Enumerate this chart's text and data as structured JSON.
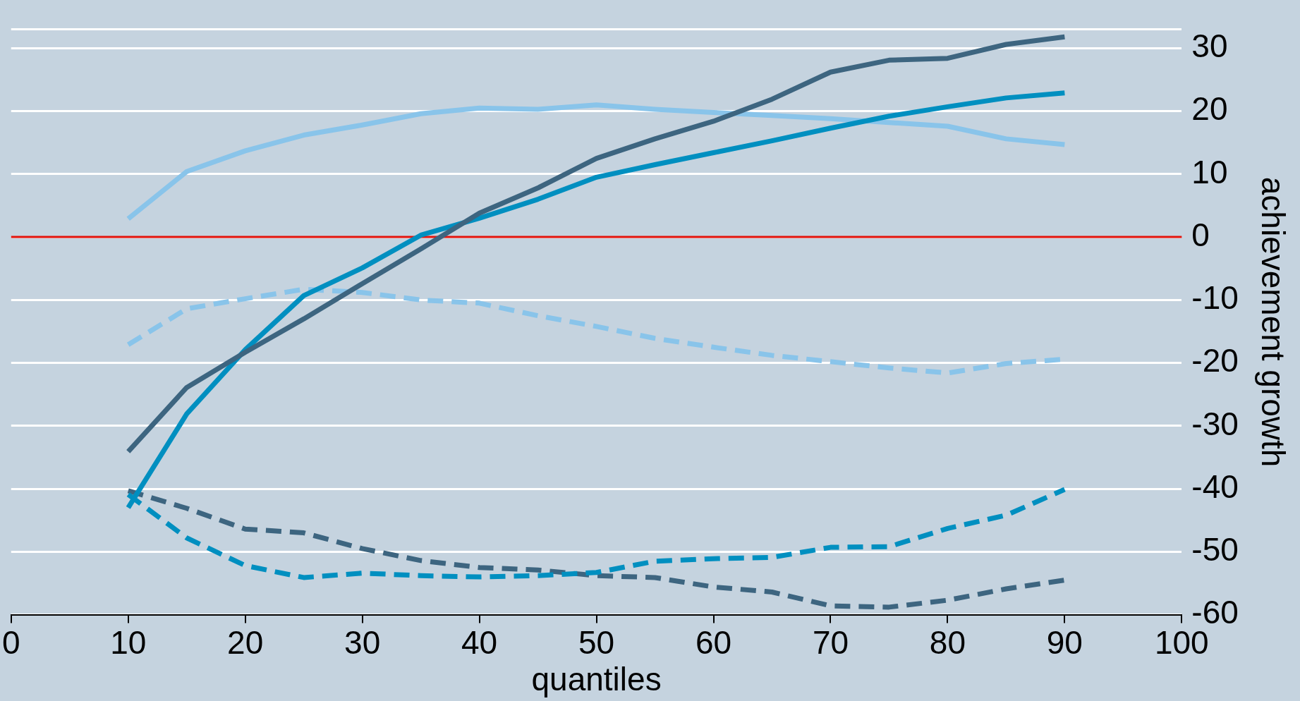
{
  "chart_data": {
    "type": "line",
    "xlabel": "quantiles",
    "ylabel": "achievement growth",
    "x": [
      10,
      15,
      20,
      25,
      30,
      35,
      40,
      45,
      50,
      55,
      60,
      65,
      70,
      75,
      80,
      85,
      90
    ],
    "series": [
      {
        "color": "#3d6580",
        "line_style": "solid",
        "values": [
          -34.1,
          -23.9,
          -18.3,
          -13,
          -7.4,
          -1.9,
          3.8,
          7.8,
          12.5,
          15.6,
          18.4,
          21.9,
          26.2,
          28.1,
          28.4,
          30.6,
          31.8
        ]
      },
      {
        "color": "#008fc0",
        "line_style": "solid",
        "values": [
          -43,
          -28.1,
          -17.9,
          -9.3,
          -4.9,
          0.3,
          3,
          6,
          9.5,
          11.5,
          13.4,
          15.3,
          17.3,
          19.2,
          20.7,
          22.1,
          22.9
        ]
      },
      {
        "color": "#89c4ea",
        "line_style": "solid",
        "values": [
          2.9,
          10.4,
          13.7,
          16.2,
          17.8,
          19.6,
          20.5,
          20.3,
          21,
          20.3,
          19.8,
          19.3,
          18.8,
          18.2,
          17.6,
          15.6,
          14.7
        ]
      },
      {
        "color": "#89c4ea",
        "line_style": "dashed",
        "values": [
          -17.1,
          -11.4,
          -9.8,
          -8.3,
          -8.8,
          -10,
          -10.5,
          -12.5,
          -14.2,
          -16.1,
          -17.5,
          -18.8,
          -19.8,
          -20.8,
          -21.6,
          -20.1,
          -19.4
        ]
      },
      {
        "color": "#008fc0",
        "line_style": "dashed",
        "values": [
          -40.9,
          -47.8,
          -52.2,
          -54.1,
          -53.4,
          -53.8,
          -54,
          -53.8,
          -53.3,
          -51.5,
          -51.1,
          -50.9,
          -49.3,
          -49.2,
          -46.3,
          -44.2,
          -40.1
        ]
      },
      {
        "color": "#3d6580",
        "line_style": "dashed",
        "values": [
          -40.3,
          -43.1,
          -46.4,
          -47,
          -49.5,
          -51.4,
          -52.5,
          -52.9,
          -53.8,
          -54.1,
          -55.6,
          -56.4,
          -58.6,
          -58.8,
          -57.7,
          -55.9,
          -54.5
        ]
      }
    ],
    "xlim": [
      0,
      100
    ],
    "xticks": [
      0,
      10,
      20,
      30,
      40,
      50,
      60,
      70,
      80,
      90,
      100
    ],
    "ylim": [
      -60,
      33
    ],
    "yticks": [
      -60,
      -50,
      -40,
      -30,
      -20,
      -10,
      0,
      10,
      20,
      30,
      {
        "value": 33,
        "label": null
      }
    ],
    "ref_lines": [
      {
        "axis": "y",
        "value": 0,
        "color": "#e3120b"
      }
    ],
    "grid": "y",
    "legend": false,
    "marker": "none"
  }
}
